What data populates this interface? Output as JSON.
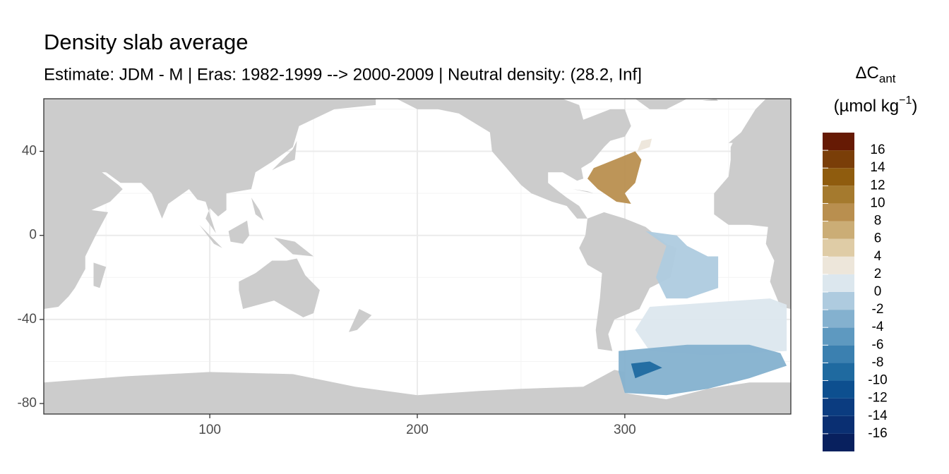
{
  "chart_data": {
    "type": "map",
    "title": "Density slab average",
    "subtitle": "Estimate: JDM - M | Eras: 1982-1999 --> 2000-2009 | Neutral density: (28.2, Inf]",
    "xlim": [
      20,
      380
    ],
    "ylim": [
      -85,
      65
    ],
    "xticks": [
      100,
      200,
      300
    ],
    "yticks": [
      -80,
      -40,
      0,
      40
    ],
    "x_minor": [
      50,
      150,
      250,
      350
    ],
    "y_minor": [
      -60,
      -20,
      20,
      60
    ],
    "grid": true,
    "land_color": "#cccccc",
    "values": [
      9,
      3,
      -1,
      1,
      -3,
      -9
    ],
    "legend": {
      "title": {
        "symbol": "ΔC",
        "subscript": "ant",
        "unit": "(µmol kg",
        "superscript": "−1",
        "close": ")"
      },
      "limits": [
        -18,
        18
      ],
      "breaks": [
        16,
        14,
        12,
        10,
        8,
        6,
        4,
        2,
        0,
        -2,
        -4,
        -6,
        -8,
        -10,
        -12,
        -14,
        -16
      ],
      "colors": [
        "#08205e",
        "#0a2f72",
        "#0b3c80",
        "#0d4f8f",
        "#1f6aa0",
        "#3b80b0",
        "#5e99c0",
        "#84b1cf",
        "#aecbdf",
        "#dce7ee",
        "#ede6da",
        "#dfcca6",
        "#cbad76",
        "#b98f4f",
        "#a57a2e",
        "#8f5c0e",
        "#7a3e08",
        "#661a04"
      ]
    }
  }
}
